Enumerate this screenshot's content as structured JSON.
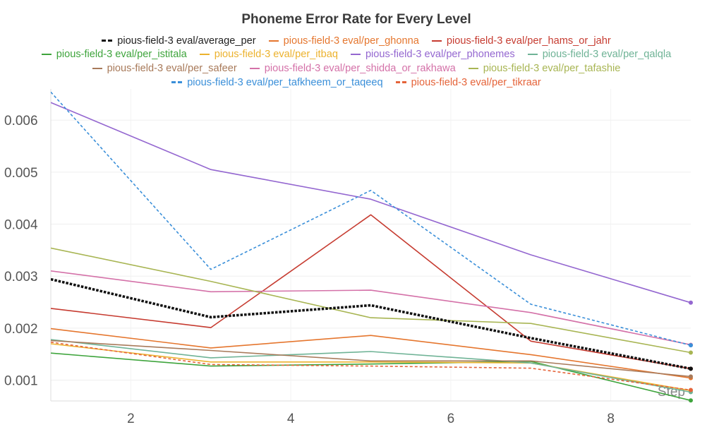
{
  "chart_data": {
    "type": "line",
    "title": "Phoneme Error Rate for Every Level",
    "xlabel": "Step",
    "ylabel": "",
    "x_ticks": [
      "2",
      "4",
      "6",
      "8"
    ],
    "y_ticks": [
      "0.001",
      "0.002",
      "0.003",
      "0.004",
      "0.005",
      "0.006"
    ],
    "xlim": [
      1,
      9
    ],
    "ylim": [
      0.0006,
      0.0066
    ],
    "grid": true,
    "legend_placement": "top",
    "x": [
      1,
      3,
      5,
      7,
      9
    ],
    "series": [
      {
        "name": "pious-field-3 eval/average_per",
        "color": "#111111",
        "style": "dotted-bold",
        "values": [
          0.00294,
          0.00221,
          0.00244,
          0.00181,
          0.00122
        ]
      },
      {
        "name": "pious-field-3 eval/per_ghonna",
        "color": "#e5762e",
        "style": "solid",
        "values": [
          0.00199,
          0.00162,
          0.00186,
          0.00149,
          0.00104
        ]
      },
      {
        "name": "pious-field-3 eval/per_hams_or_jahr",
        "color": "#c63b30",
        "style": "solid",
        "values": [
          0.00238,
          0.00201,
          0.00418,
          0.00175,
          0.00122
        ]
      },
      {
        "name": "pious-field-3 eval/per_istitala",
        "color": "#3ea43c",
        "style": "solid",
        "values": [
          0.00152,
          0.00127,
          0.00131,
          0.00136,
          0.00061
        ]
      },
      {
        "name": "pious-field-3 eval/per_itbaq",
        "color": "#ecb22e",
        "style": "solid",
        "values": [
          0.0017,
          0.00135,
          0.00135,
          0.00133,
          0.0008
        ]
      },
      {
        "name": "pious-field-3 eval/per_phonemes",
        "color": "#9467d0",
        "style": "solid",
        "values": [
          0.00634,
          0.00505,
          0.00448,
          0.00341,
          0.00249
        ]
      },
      {
        "name": "pious-field-3 eval/per_qalqla",
        "color": "#6fb396",
        "style": "solid",
        "values": [
          0.00178,
          0.00143,
          0.00155,
          0.00133,
          0.00077
        ]
      },
      {
        "name": "pious-field-3 eval/per_safeer",
        "color": "#a87a5a",
        "style": "solid",
        "values": [
          0.00176,
          0.00157,
          0.00137,
          0.00137,
          0.00107
        ]
      },
      {
        "name": "pious-field-3 eval/per_shidda_or_rakhawa",
        "color": "#d471a8",
        "style": "solid",
        "values": [
          0.0031,
          0.0027,
          0.00273,
          0.0023,
          0.00168
        ]
      },
      {
        "name": "pious-field-3 eval/per_tafashie",
        "color": "#a8b553",
        "style": "solid",
        "values": [
          0.00354,
          0.0029,
          0.0022,
          0.00209,
          0.00153
        ]
      },
      {
        "name": "pious-field-3 eval/per_tafkheem_or_taqeeq",
        "color": "#3a8fd9",
        "style": "dashed",
        "values": [
          0.00654,
          0.00313,
          0.00465,
          0.00246,
          0.00167
        ]
      },
      {
        "name": "pious-field-3 eval/per_tikraar",
        "color": "#e5643a",
        "style": "dashed",
        "values": [
          0.00173,
          0.0013,
          0.00127,
          0.00123,
          0.00081
        ]
      }
    ]
  }
}
